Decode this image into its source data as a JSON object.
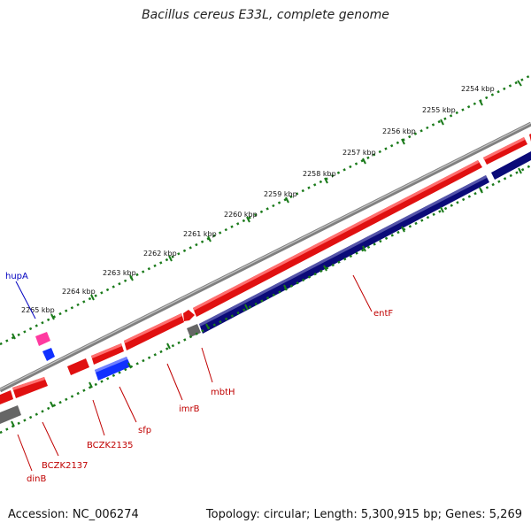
{
  "header": {
    "title": "Bacillus cereus E33L, complete genome"
  },
  "footer": {
    "accession": "Accession: NC_006274",
    "summary": "Topology: circular; Length: 5,300,915 bp; Genes: 5,269"
  },
  "colors": {
    "backbone": "#888888",
    "forward_cds": "#e01010",
    "reverse_cds": "#0a0a78",
    "blue_feature": "#1030ff",
    "pink_feature": "#ff3aa0",
    "other_feature": "#666666",
    "tick_dots": "#1a7a1a",
    "gene_label": "#c00000",
    "hupA_label": "#0000c0"
  },
  "scale_labels": [
    "2254 kbp",
    "2255 kbp",
    "2256 kbp",
    "2257 kbp",
    "2258 kbp",
    "2259 kbp",
    "2260 kbp",
    "2261 kbp",
    "2262 kbp",
    "2263 kbp",
    "2264 kbp",
    "2265 kbp"
  ],
  "gene_labels": {
    "entF": "entF",
    "mbtH": "mbtH",
    "imrB": "imrB",
    "sfp": "sfp",
    "BCZK2135": "BCZK2135",
    "BCZK2137": "BCZK2137",
    "dinB": "dinB",
    "hupA": "hupA"
  }
}
